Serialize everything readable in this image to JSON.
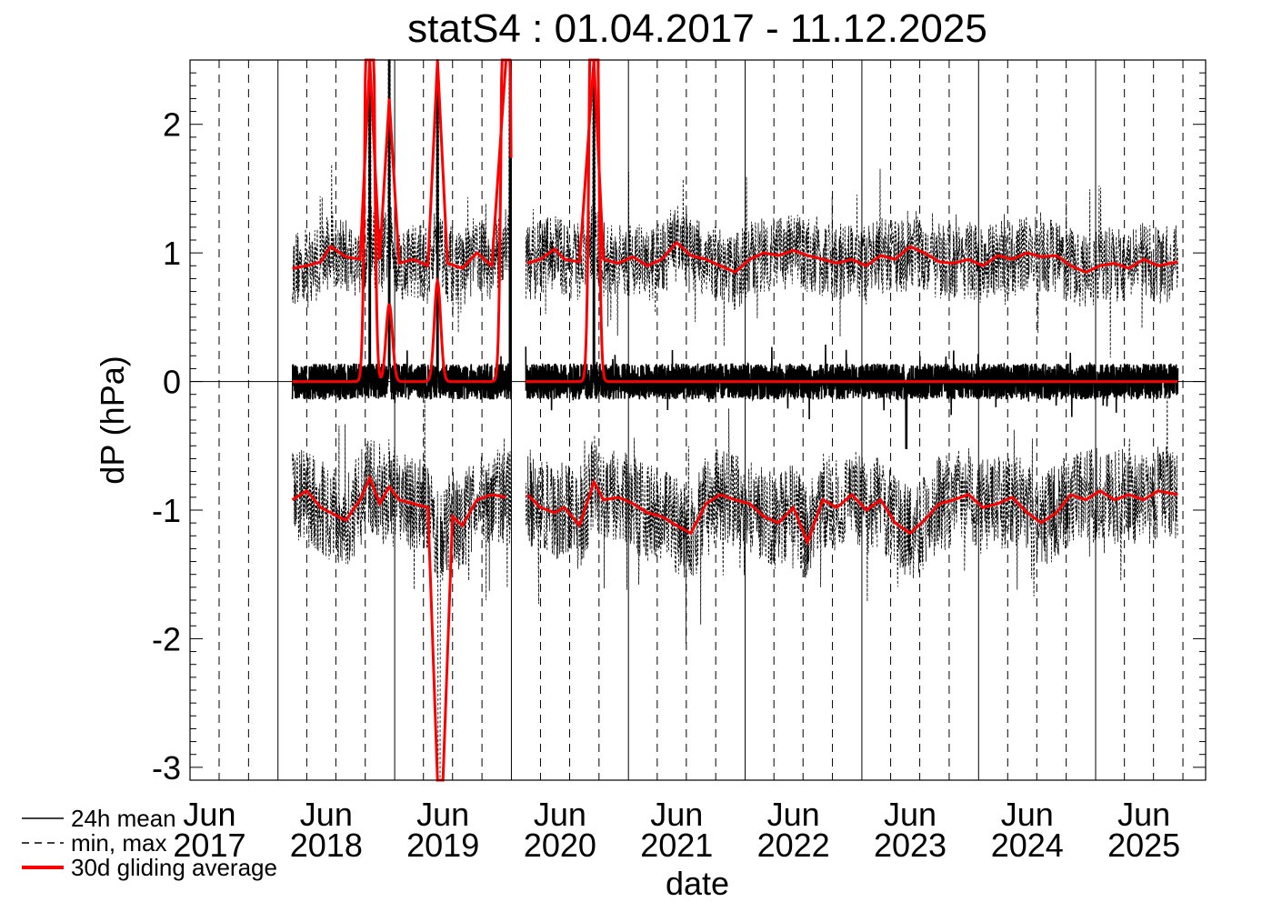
{
  "chart_data": {
    "type": "line",
    "title": "statS4 : 01.04.2017 - 11.12.2025",
    "xlabel": "date",
    "ylabel": "dP (hPa)",
    "x_range": [
      "2017-04-01",
      "2025-12-11"
    ],
    "ylim": [
      -3.1,
      2.5
    ],
    "y_ticks": [
      2,
      1,
      0,
      -1,
      -2,
      -3
    ],
    "y_tick_labels": [
      "2",
      "1",
      "0",
      "-1",
      "-2",
      "-3"
    ],
    "x_tick_labels": [
      {
        "month": "Jun",
        "year": "2017",
        "date": "2017-06-01"
      },
      {
        "month": "Jun",
        "year": "2018",
        "date": "2018-06-01"
      },
      {
        "month": "Jun",
        "year": "2019",
        "date": "2019-06-01"
      },
      {
        "month": "Jun",
        "year": "2020",
        "date": "2020-06-01"
      },
      {
        "month": "Jun",
        "year": "2021",
        "date": "2021-06-01"
      },
      {
        "month": "Jun",
        "year": "2022",
        "date": "2022-06-01"
      },
      {
        "month": "Jun",
        "year": "2023",
        "date": "2023-06-01"
      },
      {
        "month": "Jun",
        "year": "2024",
        "date": "2024-06-01"
      },
      {
        "month": "Jun",
        "year": "2025",
        "date": "2025-06-01"
      }
    ],
    "data_span": [
      "2018-02-15",
      "2025-09-15"
    ],
    "data_gap": [
      "2020-01-01",
      "2020-02-15"
    ],
    "grid": "vertical solid lines at each year start, dashed lines at each quarter",
    "legend_position": "bottom-left",
    "legend": [
      {
        "label": "24h mean",
        "style": "thin solid black"
      },
      {
        "label": "min, max",
        "style": "dashed black"
      },
      {
        "label": "30d gliding average",
        "style": "thick solid red"
      }
    ],
    "series": [
      {
        "name": "24h mean",
        "color": "#000000",
        "typical_range": [
          -0.3,
          0.3
        ],
        "spikes": [
          {
            "date": "2018-10-15",
            "value": 2.5
          },
          {
            "date": "2018-12-15",
            "value": 2.5
          },
          {
            "date": "2019-05-15",
            "value": 2.5
          },
          {
            "date": "2019-12-28",
            "value": 2.5
          },
          {
            "date": "2020-09-15",
            "value": 2.5
          },
          {
            "date": "2023-05-20",
            "value": -0.52
          }
        ]
      },
      {
        "name": "max",
        "color": "#000000",
        "typical_range": [
          0.6,
          1.5
        ]
      },
      {
        "name": "min",
        "color": "#000000",
        "typical_range": [
          -1.7,
          -0.6
        ],
        "extreme_low": {
          "date": "2019-05-20",
          "value": -3.1
        }
      },
      {
        "name": "30d gliding average of max",
        "color": "#ff0000",
        "x": [
          "2018-02-15",
          "2018-04-01",
          "2018-05-15",
          "2018-06-15",
          "2018-08-01",
          "2018-09-15",
          "2018-10-15",
          "2018-11-15",
          "2018-12-15",
          "2019-01-15",
          "2019-03-01",
          "2019-04-15",
          "2019-05-15",
          "2019-06-15",
          "2019-08-01",
          "2019-09-15",
          "2019-11-01",
          "2019-12-15",
          "2020-02-20",
          "2020-04-01",
          "2020-05-15",
          "2020-06-15",
          "2020-08-01",
          "2020-09-15",
          "2020-10-15",
          "2020-12-01",
          "2021-01-15",
          "2021-03-01",
          "2021-04-15",
          "2021-06-01",
          "2021-07-15",
          "2021-09-01",
          "2021-10-15",
          "2021-12-01",
          "2022-01-15",
          "2022-03-01",
          "2022-04-15",
          "2022-06-01",
          "2022-07-15",
          "2022-09-01",
          "2022-10-15",
          "2022-12-01",
          "2023-01-15",
          "2023-03-01",
          "2023-04-15",
          "2023-06-01",
          "2023-07-15",
          "2023-09-01",
          "2023-10-15",
          "2023-12-01",
          "2024-01-15",
          "2024-03-01",
          "2024-04-15",
          "2024-06-01",
          "2024-07-15",
          "2024-09-01",
          "2024-10-15",
          "2024-12-01",
          "2025-01-15",
          "2025-03-01",
          "2025-04-15",
          "2025-06-01",
          "2025-07-15",
          "2025-09-15"
        ],
        "y": [
          0.88,
          0.9,
          0.93,
          1.05,
          0.97,
          0.95,
          2.5,
          0.95,
          2.2,
          0.92,
          0.95,
          0.9,
          2.5,
          0.92,
          0.88,
          1.0,
          0.9,
          2.5,
          0.92,
          0.95,
          1.03,
          0.95,
          0.93,
          2.5,
          0.95,
          0.92,
          0.97,
          0.9,
          0.95,
          1.08,
          0.98,
          0.95,
          0.9,
          0.85,
          0.95,
          1.0,
          0.98,
          1.02,
          0.98,
          0.95,
          0.92,
          0.95,
          0.9,
          0.98,
          0.95,
          1.05,
          1.0,
          0.93,
          0.92,
          0.95,
          0.9,
          0.98,
          0.95,
          1.0,
          0.97,
          0.98,
          0.9,
          0.85,
          0.9,
          0.92,
          0.88,
          0.95,
          0.9,
          0.93
        ]
      },
      {
        "name": "30d gliding average of min",
        "color": "#ff0000",
        "x": [
          "2018-02-15",
          "2018-04-01",
          "2018-05-15",
          "2018-06-15",
          "2018-08-01",
          "2018-09-15",
          "2018-10-15",
          "2018-11-15",
          "2018-12-15",
          "2019-01-15",
          "2019-03-01",
          "2019-04-15",
          "2019-05-15",
          "2019-06-01",
          "2019-07-01",
          "2019-08-01",
          "2019-09-15",
          "2019-11-01",
          "2019-12-15",
          "2020-02-20",
          "2020-04-01",
          "2020-05-15",
          "2020-06-15",
          "2020-08-01",
          "2020-09-15",
          "2020-10-15",
          "2020-12-01",
          "2021-01-15",
          "2021-03-01",
          "2021-04-15",
          "2021-06-01",
          "2021-07-15",
          "2021-09-01",
          "2021-10-15",
          "2021-12-01",
          "2022-01-15",
          "2022-03-01",
          "2022-04-15",
          "2022-06-01",
          "2022-07-15",
          "2022-09-01",
          "2022-10-15",
          "2022-12-01",
          "2023-01-15",
          "2023-03-01",
          "2023-04-15",
          "2023-06-01",
          "2023-07-15",
          "2023-09-01",
          "2023-10-15",
          "2023-12-01",
          "2024-01-15",
          "2024-03-01",
          "2024-04-15",
          "2024-06-01",
          "2024-07-15",
          "2024-09-01",
          "2024-10-15",
          "2024-12-01",
          "2025-01-15",
          "2025-03-01",
          "2025-04-15",
          "2025-06-01",
          "2025-07-15",
          "2025-09-15"
        ],
        "y": [
          -0.92,
          -0.85,
          -0.98,
          -1.02,
          -1.08,
          -0.92,
          -0.75,
          -0.95,
          -0.82,
          -0.92,
          -0.95,
          -0.98,
          -3.1,
          -3.1,
          -1.05,
          -1.12,
          -0.92,
          -0.88,
          -0.9,
          -0.88,
          -0.98,
          -1.02,
          -0.98,
          -1.12,
          -0.78,
          -0.92,
          -0.9,
          -0.95,
          -1.02,
          -1.05,
          -1.12,
          -1.18,
          -0.95,
          -0.88,
          -0.92,
          -0.95,
          -1.05,
          -1.1,
          -0.98,
          -1.25,
          -0.92,
          -0.98,
          -0.88,
          -1.0,
          -0.92,
          -1.1,
          -1.18,
          -1.08,
          -0.95,
          -0.92,
          -0.88,
          -0.98,
          -0.95,
          -0.9,
          -1.02,
          -1.1,
          -1.02,
          -0.88,
          -0.92,
          -0.85,
          -0.92,
          -0.88,
          -0.92,
          -0.85,
          -0.88
        ]
      },
      {
        "name": "30d gliding average of mean",
        "color": "#ff0000",
        "baseline": 0.0,
        "spikes": [
          {
            "date": "2018-10-15",
            "value": 2.5
          },
          {
            "date": "2018-12-15",
            "value": 0.6
          },
          {
            "date": "2019-05-15",
            "value": 0.78
          },
          {
            "date": "2019-12-15",
            "value": 2.5
          },
          {
            "date": "2020-09-15",
            "value": 2.5
          }
        ]
      }
    ]
  }
}
